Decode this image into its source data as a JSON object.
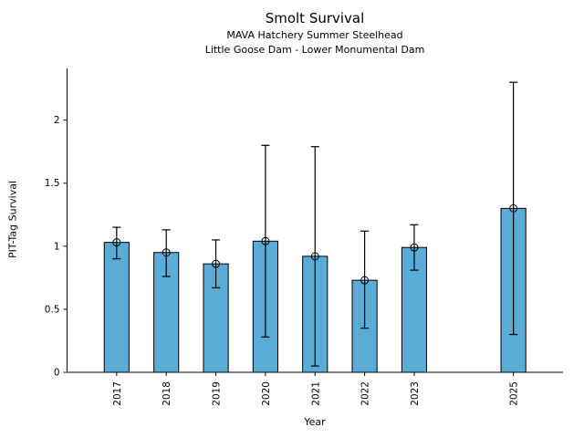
{
  "chart_data": {
    "type": "bar",
    "title": "Smolt Survival",
    "subtitle1": "MAVA Hatchery Summer Steelhead",
    "subtitle2": "Little Goose Dam - Lower Monumental Dam",
    "xlabel": "Year",
    "ylabel": "PIT-Tag Survival",
    "categories": [
      2017,
      2018,
      2019,
      2020,
      2021,
      2022,
      2023,
      2025
    ],
    "xticklabels": [
      "2017",
      "2018",
      "2019",
      "2020",
      "2021",
      "2022",
      "2023",
      "2025"
    ],
    "values": [
      1.03,
      0.95,
      0.86,
      1.04,
      0.92,
      0.73,
      0.99,
      1.3
    ],
    "error_low": [
      0.9,
      0.76,
      0.67,
      0.28,
      0.05,
      0.35,
      0.81,
      0.3
    ],
    "error_high": [
      1.15,
      1.13,
      1.05,
      1.8,
      1.79,
      1.12,
      1.17,
      2.3
    ],
    "xlim": [
      2016,
      2026
    ],
    "ylim": [
      0,
      2.41
    ],
    "yticks": [
      0,
      0.5,
      1,
      1.5,
      2
    ],
    "yticklabels": [
      "0",
      "0.5",
      "1",
      "1.5",
      "2"
    ],
    "bar_width_years": 0.5,
    "bar_color": "#5aabd6",
    "bar_edge_color": "#000000",
    "error_color": "#000000",
    "marker": "open-circle",
    "xtick_rotation_deg": 90,
    "grid": false,
    "legend": false,
    "missing_years": [
      2024
    ]
  }
}
